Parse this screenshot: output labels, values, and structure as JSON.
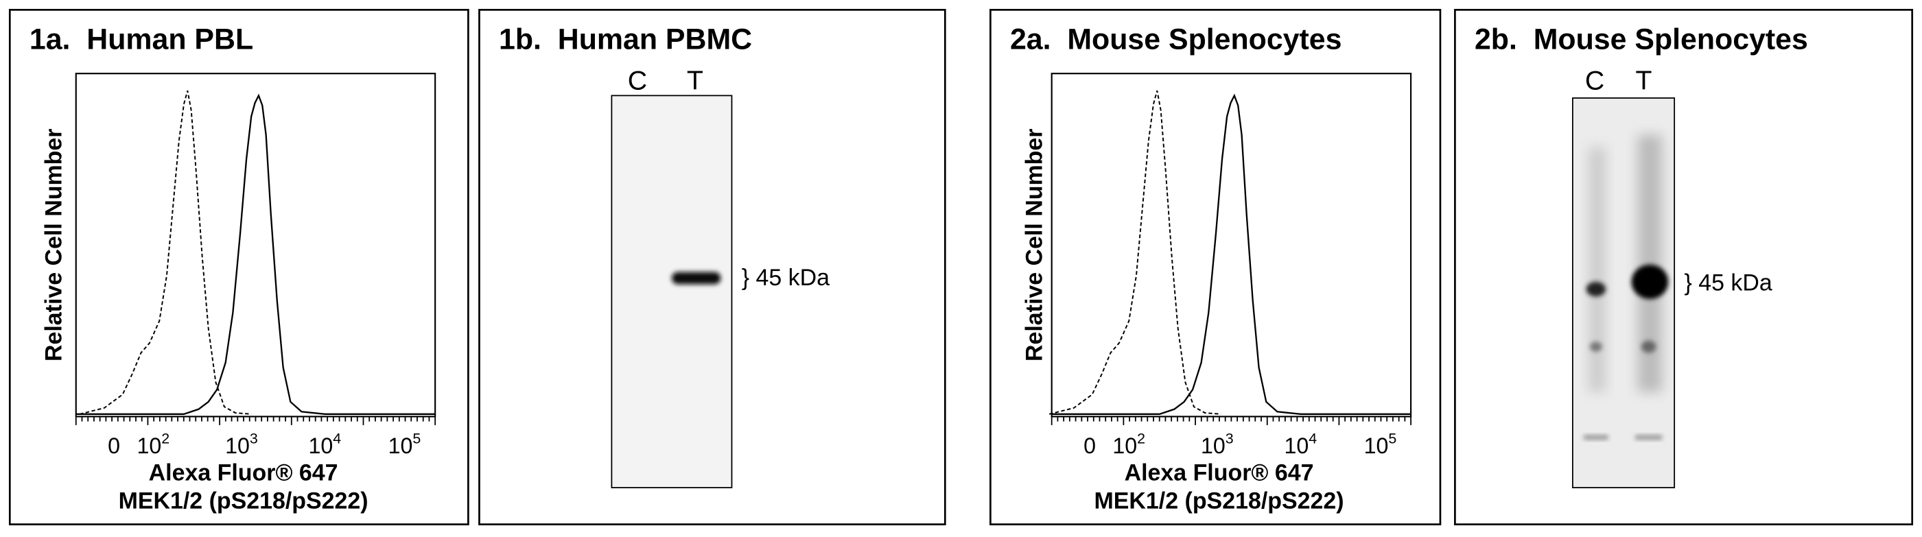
{
  "panels": [
    {
      "title": "1a.  Human PBL",
      "y_label": "Relative Cell Number",
      "x_ticks": [
        {
          "text": "0"
        },
        {
          "base": "10",
          "exp": "2"
        },
        {
          "base": "10",
          "exp": "3"
        },
        {
          "base": "10",
          "exp": "4"
        },
        {
          "base": "10",
          "exp": "5"
        }
      ],
      "x_label": [
        "Alexa Fluor® 647",
        "MEK1/2 (pS218/pS222)"
      ]
    },
    {
      "title": "1b.  Human PBMC",
      "lanes": [
        "C",
        "T"
      ],
      "band_label": "} 45 kDa"
    },
    {
      "title": "2a.  Mouse Splenocytes",
      "y_label": "Relative Cell Number",
      "x_ticks": [
        {
          "text": "0"
        },
        {
          "base": "10",
          "exp": "2"
        },
        {
          "base": "10",
          "exp": "3"
        },
        {
          "base": "10",
          "exp": "4"
        },
        {
          "base": "10",
          "exp": "5"
        }
      ],
      "x_label": [
        "Alexa Fluor® 647",
        "MEK1/2 (pS218/pS222)"
      ]
    },
    {
      "title": "2b.  Mouse Splenocytes",
      "lanes": [
        "C",
        "T"
      ],
      "band_label": "} 45 kDa"
    }
  ]
}
